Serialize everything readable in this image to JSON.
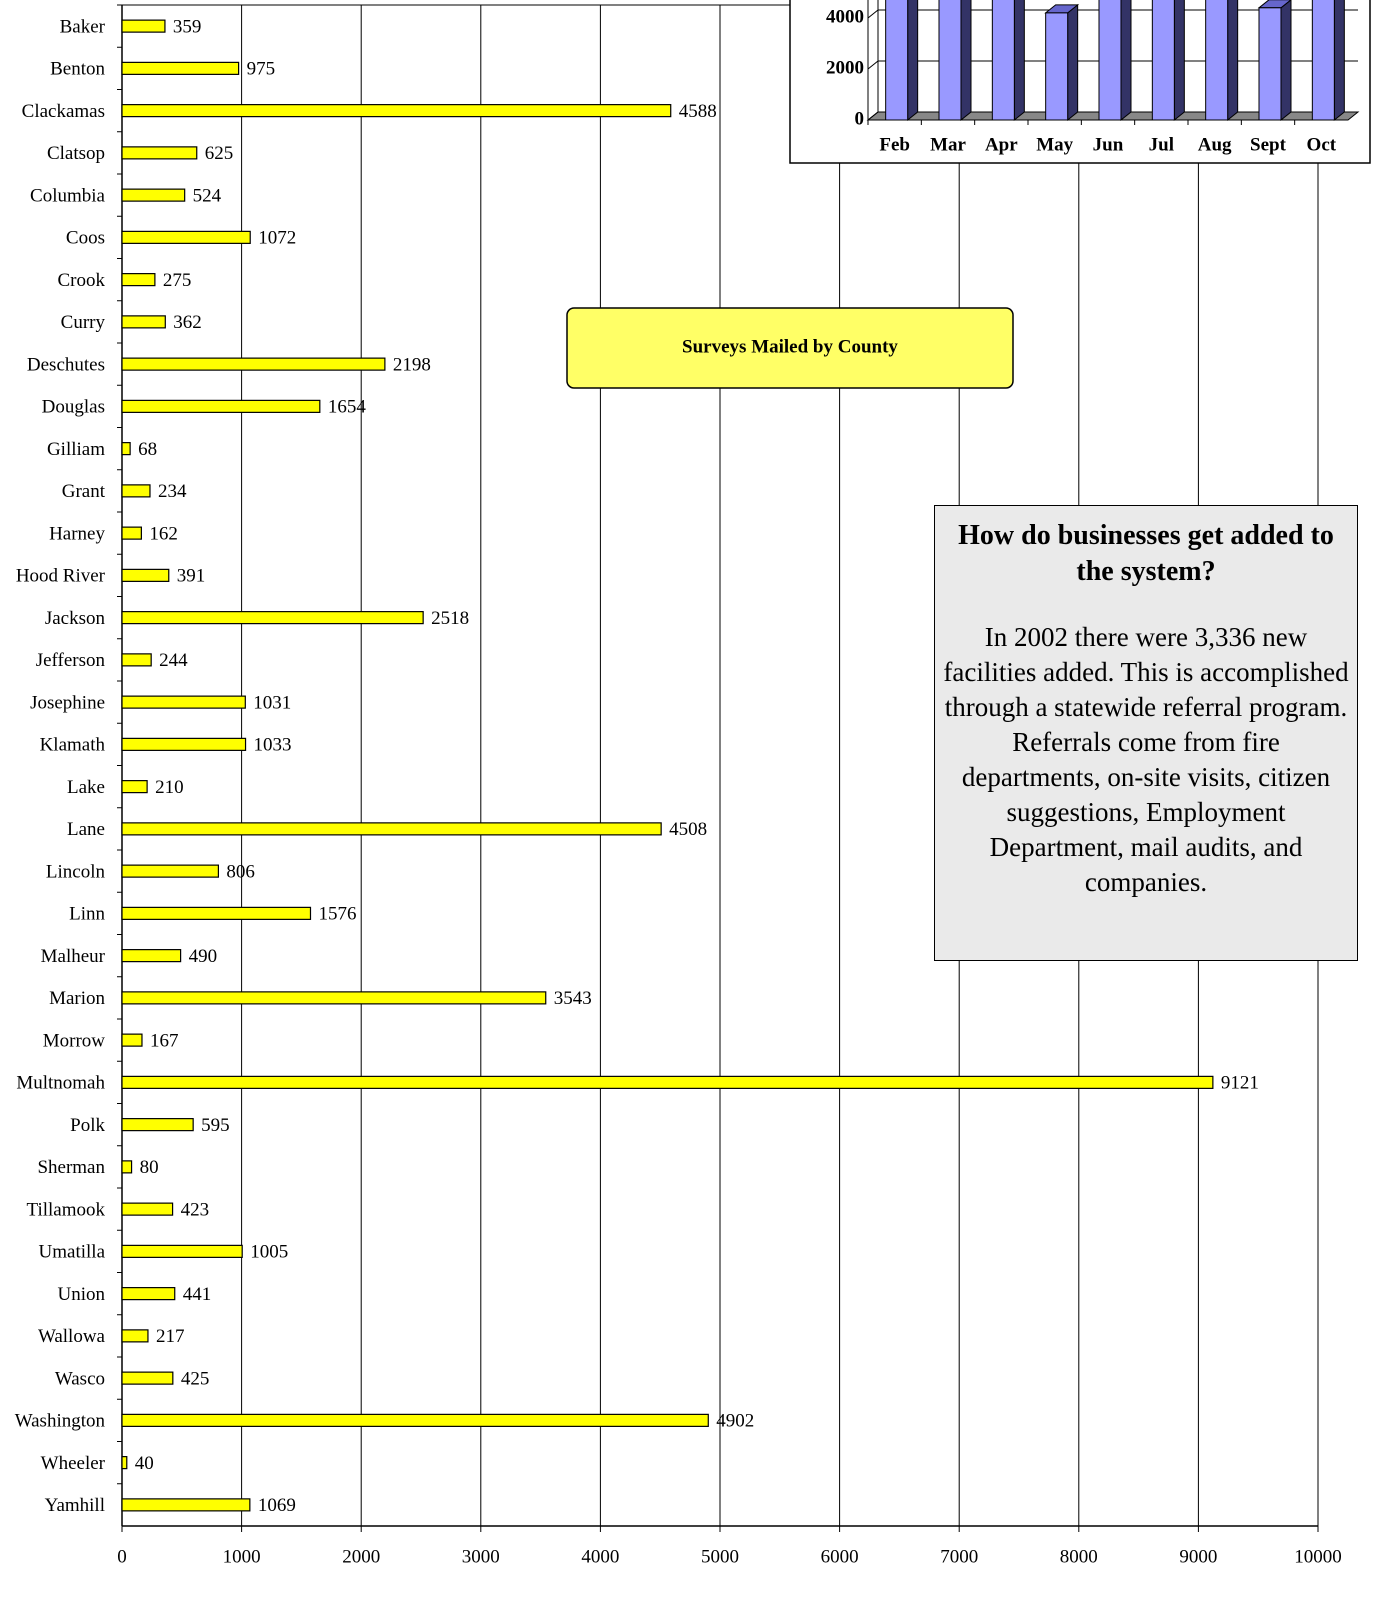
{
  "chart_data": [
    {
      "type": "bar",
      "orientation": "horizontal",
      "title": "Surveys Mailed by County",
      "color": "#ffff00",
      "categories": [
        "Baker",
        "Benton",
        "Clackamas",
        "Clatsop",
        "Columbia",
        "Coos",
        "Crook",
        "Curry",
        "Deschutes",
        "Douglas",
        "Gilliam",
        "Grant",
        "Harney",
        "Hood River",
        "Jackson",
        "Jefferson",
        "Josephine",
        "Klamath",
        "Lake",
        "Lane",
        "Lincoln",
        "Linn",
        "Malheur",
        "Marion",
        "Morrow",
        "Multnomah",
        "Polk",
        "Sherman",
        "Tillamook",
        "Umatilla",
        "Union",
        "Wallowa",
        "Wasco",
        "Washington",
        "Wheeler",
        "Yamhill"
      ],
      "values": [
        359,
        975,
        4588,
        625,
        524,
        1072,
        275,
        362,
        2198,
        1654,
        68,
        234,
        162,
        391,
        2518,
        244,
        1031,
        1033,
        210,
        4508,
        806,
        1576,
        490,
        3543,
        167,
        9121,
        595,
        80,
        423,
        1005,
        441,
        217,
        425,
        4902,
        40,
        1069
      ],
      "xlim": [
        0,
        10000
      ],
      "xticks": [
        0,
        1000,
        2000,
        3000,
        4000,
        5000,
        6000,
        7000,
        8000,
        9000,
        10000
      ],
      "grid": true
    },
    {
      "type": "bar",
      "3d": true,
      "color": "#9999ff",
      "categories": [
        "Feb",
        "Mar",
        "Apr",
        "May",
        "Jun",
        "Jul",
        "Aug",
        "Sept",
        "Oct"
      ],
      "values": [
        5500,
        5500,
        5500,
        4200,
        5500,
        5500,
        5500,
        4400,
        5500
      ],
      "ylim": [
        0,
        6000
      ],
      "yticks": [
        0,
        2000,
        4000
      ],
      "grid": true
    }
  ],
  "text_box": {
    "title": "How do businesses get added to the system?",
    "body": "In 2002 there were 3,336 new facilities added. This is accomplished through a statewide referral program. Referrals come from fire departments, on-site visits, citizen suggestions, Employment Department, mail audits, and companies."
  }
}
